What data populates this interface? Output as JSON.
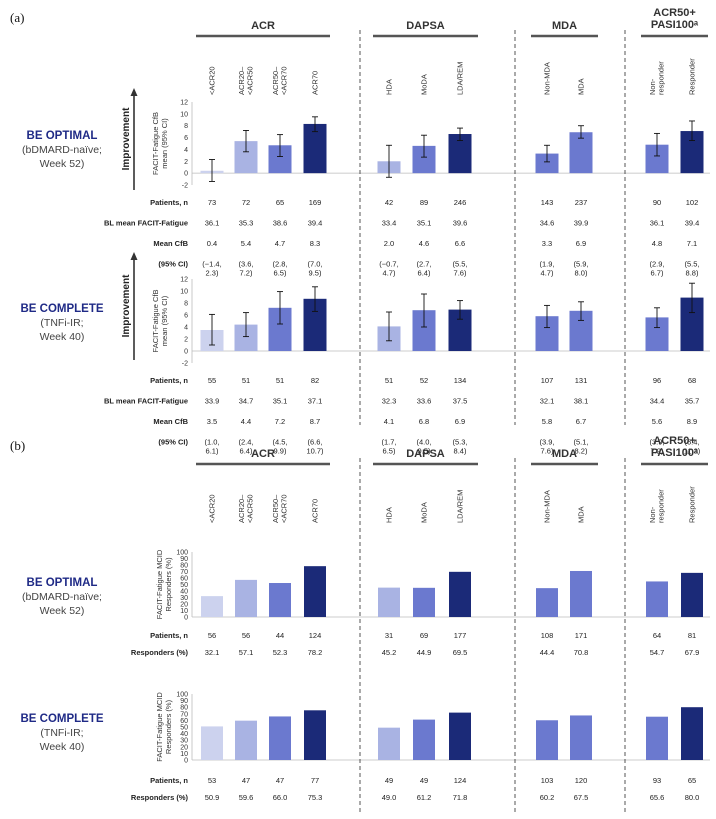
{
  "panels": [
    {
      "label": "(a)",
      "kind": "cfb",
      "header_y": 8
    },
    {
      "label": "(b)",
      "kind": "mcid",
      "header_y": 436
    }
  ],
  "groups": [
    {
      "name": "ACR",
      "cats": [
        "<ACR20",
        "ACR20–\n<ACR50",
        "ACR50–\n<ACR70",
        "ACR70"
      ]
    },
    {
      "name": "DAPSA",
      "cats": [
        "HDA",
        "MoDA",
        "LDA/REM"
      ]
    },
    {
      "name": "MDA",
      "cats": [
        "Non-MDA",
        "MDA"
      ]
    },
    {
      "name": "ACR50+\nPASI100ᵃ",
      "cats": [
        "Non-\nresponder",
        "Responder"
      ]
    }
  ],
  "colors": {
    "light": "#ccd2ee",
    "lightmid": "#a9b3e3",
    "mid": "#6b79cf",
    "dark": "#1b2a78"
  },
  "bar_colors": [
    "light",
    "lightmid",
    "mid",
    "dark",
    "lightmid",
    "mid",
    "dark",
    "mid",
    "mid",
    "mid",
    "dark"
  ],
  "improvement_label": "Improvement",
  "row_labels_a": {
    "n": "Patients, n",
    "bl": "BL mean FACIT-Fatigue",
    "mean": "Mean CfB",
    "ci": "(95% CI)"
  },
  "row_labels_b": {
    "n": "Patients, n",
    "resp": "Responders (%)"
  },
  "chart_data": [
    {
      "type": "bar",
      "panel": "(a)",
      "study": "BE OPTIMAL",
      "subtitle": [
        "(bDMARD-naïve;",
        "Week 52)"
      ],
      "ylabel": [
        "FACIT-Fatigue CfB",
        "mean (95% CI)"
      ],
      "ylim": [
        -2,
        12
      ],
      "yticks": [
        -2,
        0,
        2,
        4,
        6,
        8,
        10,
        12
      ],
      "categories": [
        "<ACR20",
        "ACR20–<ACR50",
        "ACR50–<ACR70",
        "ACR70",
        "HDA",
        "MoDA",
        "LDA/REM",
        "Non-MDA",
        "MDA",
        "Non-responder",
        "Responder"
      ],
      "values": [
        0.4,
        5.4,
        4.7,
        8.3,
        2.0,
        4.6,
        6.6,
        3.3,
        6.9,
        4.8,
        7.1
      ],
      "ci_low": [
        -1.4,
        3.6,
        2.8,
        7.0,
        -0.7,
        2.7,
        5.5,
        1.9,
        5.9,
        2.9,
        5.5
      ],
      "ci_high": [
        2.3,
        7.2,
        6.5,
        9.5,
        4.7,
        6.4,
        7.6,
        4.7,
        8.0,
        6.7,
        8.8
      ],
      "patients": [
        "73",
        "72",
        "65",
        "169",
        "42",
        "89",
        "246",
        "143",
        "237",
        "90",
        "102"
      ],
      "bl_mean": [
        "36.1",
        "35.3",
        "38.6",
        "39.4",
        "33.4",
        "35.1",
        "39.6",
        "34.6",
        "39.9",
        "36.1",
        "39.4"
      ],
      "mean_cfb": [
        "0.4",
        "5.4",
        "4.7",
        "8.3",
        "2.0",
        "4.6",
        "6.6",
        "3.3",
        "6.9",
        "4.8",
        "7.1"
      ],
      "ci_text": [
        "(−1.4,\n2.3)",
        "(3.6,\n7.2)",
        "(2.8,\n6.5)",
        "(7.0,\n9.5)",
        "(−0.7,\n4.7)",
        "(2.7,\n6.4)",
        "(5.5,\n7.6)",
        "(1.9,\n4.7)",
        "(5.9,\n8.0)",
        "(2.9,\n6.7)",
        "(5.5,\n8.8)"
      ]
    },
    {
      "type": "bar",
      "panel": "(a)",
      "study": "BE COMPLETE",
      "subtitle": [
        "(TNFi-IR;",
        "Week 40)"
      ],
      "ylabel": [
        "FACIT-Fatigue CfB",
        "mean (95% CI)"
      ],
      "ylim": [
        -2,
        12
      ],
      "yticks": [
        -2,
        0,
        2,
        4,
        6,
        8,
        10,
        12
      ],
      "categories": [
        "<ACR20",
        "ACR20–<ACR50",
        "ACR50–<ACR70",
        "ACR70",
        "HDA",
        "MoDA",
        "LDA/REM",
        "Non-MDA",
        "MDA",
        "Non-responder",
        "Responder"
      ],
      "values": [
        3.5,
        4.4,
        7.2,
        8.7,
        4.1,
        6.8,
        6.9,
        5.8,
        6.7,
        5.6,
        8.9
      ],
      "ci_low": [
        1.0,
        2.4,
        4.5,
        6.6,
        1.7,
        4.0,
        5.3,
        3.9,
        5.1,
        3.9,
        6.4
      ],
      "ci_high": [
        6.1,
        6.4,
        9.9,
        10.7,
        6.5,
        9.5,
        8.4,
        7.6,
        8.2,
        7.2,
        11.3
      ],
      "patients": [
        "55",
        "51",
        "51",
        "82",
        "51",
        "52",
        "134",
        "107",
        "131",
        "96",
        "68"
      ],
      "bl_mean": [
        "33.9",
        "34.7",
        "35.1",
        "37.1",
        "32.3",
        "33.6",
        "37.5",
        "32.1",
        "38.1",
        "34.4",
        "35.7"
      ],
      "mean_cfb": [
        "3.5",
        "4.4",
        "7.2",
        "8.7",
        "4.1",
        "6.8",
        "6.9",
        "5.8",
        "6.7",
        "5.6",
        "8.9"
      ],
      "ci_text": [
        "(1.0,\n6.1)",
        "(2.4,\n6.4)",
        "(4.5,\n9.9)",
        "(6.6,\n10.7)",
        "(1.7,\n6.5)",
        "(4.0,\n9.5)",
        "(5.3,\n8.4)",
        "(3.9,\n7.6)",
        "(5.1,\n8.2)",
        "(3.9,\n7.2)",
        "(6.4,\n11.3)"
      ]
    },
    {
      "type": "bar",
      "panel": "(b)",
      "study": "BE OPTIMAL",
      "subtitle": [
        "(bDMARD-naïve;",
        "Week 52)"
      ],
      "ylabel": [
        "FACIT-Fatigue MCID",
        "Responders (%)"
      ],
      "ylim": [
        0,
        100
      ],
      "yticks": [
        0,
        10,
        20,
        30,
        40,
        50,
        60,
        70,
        80,
        90,
        100
      ],
      "categories": [
        "<ACR20",
        "ACR20–<ACR50",
        "ACR50–<ACR70",
        "ACR70",
        "HDA",
        "MoDA",
        "LDA/REM",
        "Non-MDA",
        "MDA",
        "Non-responder",
        "Responder"
      ],
      "values": [
        32.1,
        57.1,
        52.3,
        78.2,
        45.2,
        44.9,
        69.5,
        44.4,
        70.8,
        54.7,
        67.9
      ],
      "patients": [
        "56",
        "56",
        "44",
        "124",
        "31",
        "69",
        "177",
        "108",
        "171",
        "64",
        "81"
      ],
      "responders": [
        "32.1",
        "57.1",
        "52.3",
        "78.2",
        "45.2",
        "44.9",
        "69.5",
        "44.4",
        "70.8",
        "54.7",
        "67.9"
      ]
    },
    {
      "type": "bar",
      "panel": "(b)",
      "study": "BE COMPLETE",
      "subtitle": [
        "(TNFi-IR;",
        "Week 40)"
      ],
      "ylabel": [
        "FACIT-Fatigue MCID",
        "Responders (%)"
      ],
      "ylim": [
        0,
        100
      ],
      "yticks": [
        0,
        10,
        20,
        30,
        40,
        50,
        60,
        70,
        80,
        90,
        100
      ],
      "categories": [
        "<ACR20",
        "ACR20–<ACR50",
        "ACR50–<ACR70",
        "ACR70",
        "HDA",
        "MoDA",
        "LDA/REM",
        "Non-MDA",
        "MDA",
        "Non-responder",
        "Responder"
      ],
      "values": [
        50.9,
        59.6,
        66.0,
        75.3,
        49.0,
        61.2,
        71.8,
        60.2,
        67.5,
        65.6,
        80.0
      ],
      "patients": [
        "53",
        "47",
        "47",
        "77",
        "49",
        "49",
        "124",
        "103",
        "120",
        "93",
        "65"
      ],
      "responders": [
        "50.9",
        "59.6",
        "66.0",
        "75.3",
        "49.0",
        "61.2",
        "71.8",
        "60.2",
        "67.5",
        "65.6",
        "80.0"
      ]
    }
  ]
}
